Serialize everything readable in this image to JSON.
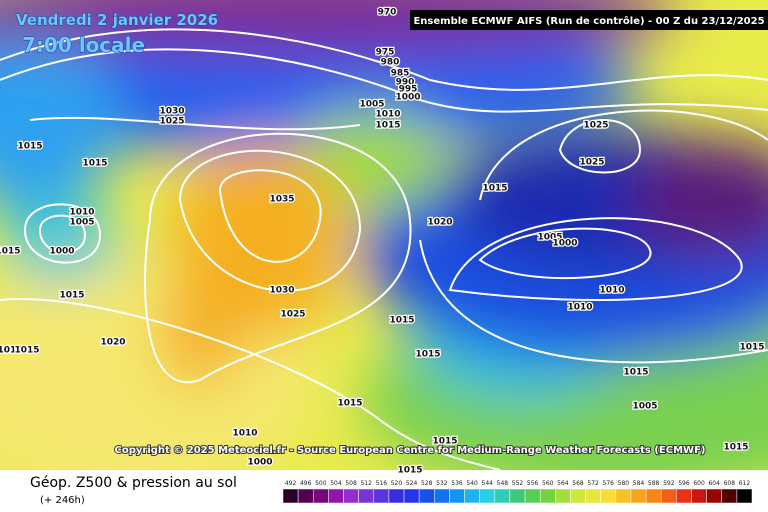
{
  "header": {
    "date": "Vendredi 2 janvier 2026",
    "time": "7:00 locale",
    "run": "Ensemble ECMWF AIFS  (Run de contrôle)  - 00 Z du 23/12/2025",
    "copyright": "Copyright © 2025 Meteociel.fr - Source European Centre for Medium-Range Weather Forecasts (ECMWF)"
  },
  "footer": {
    "title": "Géop. Z500 & pression au sol",
    "lead": "(+ 246h)"
  },
  "scale": [
    492,
    496,
    500,
    504,
    508,
    512,
    516,
    520,
    524,
    528,
    532,
    536,
    540,
    544,
    548,
    552,
    556,
    560,
    564,
    568,
    572,
    576,
    580,
    584,
    588,
    592,
    596,
    600,
    604,
    608,
    612
  ],
  "isobar_labels": [
    "970",
    "975",
    "980",
    "985",
    "990",
    "995",
    "1000",
    "1005",
    "1010",
    "1015",
    "1030",
    "1025",
    "1015",
    "1015",
    "1010",
    "1005",
    "1000",
    "1015",
    "1015",
    "1035",
    "1030",
    "1025",
    "1020",
    "1015",
    "1015",
    "1015",
    "1020",
    "1015",
    "1025",
    "1025",
    "1005",
    "1000",
    "1010",
    "1010",
    "1015",
    "1015",
    "1005",
    "1010",
    "1000",
    "1015",
    "1015",
    "1015",
    "1010",
    "1015"
  ]
}
